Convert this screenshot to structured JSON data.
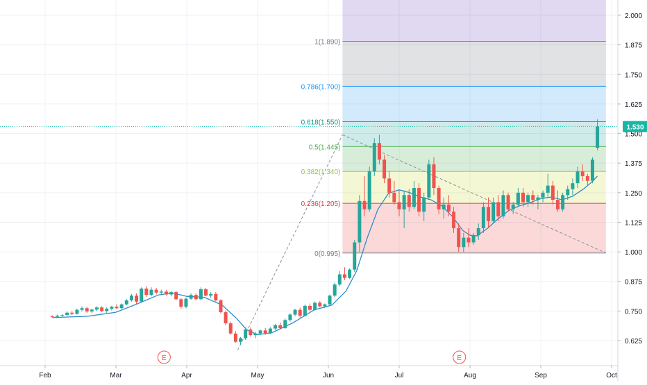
{
  "chart_data": {
    "type": "candlestick",
    "colors": {
      "up": "#26a69a",
      "down": "#ef5350",
      "ma": "#2f8bc9",
      "grid": "#eef0f4",
      "axis_text": "#131722",
      "last_price_badge": "#16b7a4",
      "earnings_marker": "#ef5350"
    },
    "x_axis": {
      "ticks": [
        "Feb",
        "Mar",
        "Apr",
        "May",
        "Jun",
        "Jul",
        "Aug",
        "Sep",
        "Oct"
      ]
    },
    "y_axis": {
      "ylim": [
        0.57,
        2.08
      ],
      "ticks": [
        "2.000",
        "1.875",
        "1.750",
        "1.625",
        "1.500",
        "1.375",
        "1.250",
        "1.125",
        "1.000",
        "0.875",
        "0.750",
        "0.625"
      ],
      "tick_values": [
        2.0,
        1.875,
        1.75,
        1.625,
        1.5,
        1.375,
        1.25,
        1.125,
        1.0,
        0.875,
        0.75,
        0.625
      ],
      "last_price": "1.530",
      "last_price_value": 1.53
    },
    "fibonacci": {
      "start_month": 4.2,
      "end_month": 7.92,
      "levels": [
        {
          "label": "0(0.995)",
          "value": 0.995,
          "color": "#787b86",
          "fill": "rgba(239,83,80,0.22)"
        },
        {
          "label": "0.236(1.205)",
          "value": 1.205,
          "color": "#e53935",
          "fill": "rgba(205,220,57,0.22)"
        },
        {
          "label": "0.382(1.340)",
          "value": 1.34,
          "color": "#8bc34a",
          "fill": "rgba(76,175,80,0.22)"
        },
        {
          "label": "0.5(1.445)",
          "value": 1.445,
          "color": "#4caf50",
          "fill": "rgba(38,166,154,0.22)"
        },
        {
          "label": "0.618(1.550)",
          "value": 1.55,
          "color": "#089981",
          "fill": "rgba(33,150,243,0.20)"
        },
        {
          "label": "0.786(1.700)",
          "value": 1.7,
          "color": "#2196f3",
          "fill": "rgba(120,123,134,0.22)"
        },
        {
          "label": "1(1.890)",
          "value": 1.89,
          "color": "#787b86",
          "fill": "rgba(103,58,183,0.20)"
        }
      ],
      "top_fill_to": 2.08
    },
    "trend_lines": [
      {
        "x1": 2.72,
        "y1": 0.585,
        "x2": 4.2,
        "y2": 1.495
      },
      {
        "x1": 4.2,
        "y1": 1.495,
        "x2": 7.92,
        "y2": 0.995
      }
    ],
    "earnings_markers": [
      {
        "label": "E",
        "month": 1.68
      },
      {
        "label": "E",
        "month": 5.85
      }
    ],
    "candles": [
      [
        0.1,
        0.728,
        0.732,
        0.722,
        0.725
      ],
      [
        0.17,
        0.725,
        0.735,
        0.72,
        0.73
      ],
      [
        0.24,
        0.73,
        0.738,
        0.725,
        0.733
      ],
      [
        0.31,
        0.733,
        0.748,
        0.728,
        0.743
      ],
      [
        0.38,
        0.743,
        0.75,
        0.733,
        0.738
      ],
      [
        0.45,
        0.738,
        0.76,
        0.735,
        0.755
      ],
      [
        0.52,
        0.755,
        0.77,
        0.748,
        0.762
      ],
      [
        0.59,
        0.762,
        0.768,
        0.742,
        0.748
      ],
      [
        0.66,
        0.748,
        0.76,
        0.74,
        0.756
      ],
      [
        0.73,
        0.756,
        0.77,
        0.75,
        0.765
      ],
      [
        0.8,
        0.765,
        0.77,
        0.745,
        0.75
      ],
      [
        0.87,
        0.75,
        0.765,
        0.742,
        0.76
      ],
      [
        0.94,
        0.76,
        0.772,
        0.752,
        0.768
      ],
      [
        1.01,
        0.768,
        0.778,
        0.758,
        0.762
      ],
      [
        1.08,
        0.762,
        0.782,
        0.76,
        0.778
      ],
      [
        1.15,
        0.778,
        0.8,
        0.775,
        0.795
      ],
      [
        1.22,
        0.795,
        0.822,
        0.79,
        0.815
      ],
      [
        1.29,
        0.815,
        0.825,
        0.78,
        0.79
      ],
      [
        1.36,
        0.79,
        0.85,
        0.785,
        0.845
      ],
      [
        1.43,
        0.845,
        0.855,
        0.81,
        0.818
      ],
      [
        1.5,
        0.818,
        0.85,
        0.812,
        0.84
      ],
      [
        1.57,
        0.84,
        0.848,
        0.82,
        0.828
      ],
      [
        1.64,
        0.828,
        0.84,
        0.818,
        0.832
      ],
      [
        1.71,
        0.832,
        0.84,
        0.815,
        0.82
      ],
      [
        1.78,
        0.82,
        0.835,
        0.812,
        0.83
      ],
      [
        1.85,
        0.83,
        0.835,
        0.795,
        0.8
      ],
      [
        1.92,
        0.8,
        0.805,
        0.76,
        0.768
      ],
      [
        1.99,
        0.768,
        0.808,
        0.762,
        0.802
      ],
      [
        2.06,
        0.802,
        0.825,
        0.798,
        0.818
      ],
      [
        2.13,
        0.818,
        0.825,
        0.795,
        0.8
      ],
      [
        2.2,
        0.8,
        0.85,
        0.795,
        0.842
      ],
      [
        2.27,
        0.842,
        0.848,
        0.812,
        0.815
      ],
      [
        2.34,
        0.815,
        0.83,
        0.805,
        0.822
      ],
      [
        2.41,
        0.822,
        0.83,
        0.79,
        0.795
      ],
      [
        2.48,
        0.795,
        0.8,
        0.74,
        0.745
      ],
      [
        2.55,
        0.745,
        0.752,
        0.69,
        0.698
      ],
      [
        2.62,
        0.698,
        0.705,
        0.65,
        0.655
      ],
      [
        2.69,
        0.655,
        0.665,
        0.615,
        0.62
      ],
      [
        2.76,
        0.62,
        0.64,
        0.608,
        0.635
      ],
      [
        2.83,
        0.635,
        0.68,
        0.628,
        0.672
      ],
      [
        2.9,
        0.672,
        0.68,
        0.642,
        0.648
      ],
      [
        2.97,
        0.648,
        0.662,
        0.635,
        0.655
      ],
      [
        3.04,
        0.655,
        0.672,
        0.648,
        0.668
      ],
      [
        3.11,
        0.668,
        0.678,
        0.65,
        0.656
      ],
      [
        3.18,
        0.656,
        0.682,
        0.652,
        0.676
      ],
      [
        3.25,
        0.676,
        0.695,
        0.67,
        0.69
      ],
      [
        3.32,
        0.69,
        0.702,
        0.672,
        0.678
      ],
      [
        3.39,
        0.678,
        0.718,
        0.675,
        0.712
      ],
      [
        3.46,
        0.712,
        0.74,
        0.705,
        0.735
      ],
      [
        3.53,
        0.735,
        0.76,
        0.728,
        0.755
      ],
      [
        3.6,
        0.755,
        0.765,
        0.722,
        0.73
      ],
      [
        3.67,
        0.73,
        0.778,
        0.726,
        0.772
      ],
      [
        3.74,
        0.772,
        0.782,
        0.748,
        0.755
      ],
      [
        3.81,
        0.755,
        0.79,
        0.752,
        0.785
      ],
      [
        3.88,
        0.785,
        0.792,
        0.765,
        0.77
      ],
      [
        3.95,
        0.77,
        0.782,
        0.762,
        0.778
      ],
      [
        4.02,
        0.778,
        0.82,
        0.775,
        0.815
      ],
      [
        4.09,
        0.815,
        0.87,
        0.808,
        0.862
      ],
      [
        4.16,
        0.862,
        0.918,
        0.855,
        0.905
      ],
      [
        4.23,
        0.905,
        0.935,
        0.88,
        0.89
      ],
      [
        4.3,
        0.89,
        0.93,
        0.885,
        0.925
      ],
      [
        4.37,
        0.925,
        1.05,
        0.915,
        1.04
      ],
      [
        4.44,
        1.04,
        1.24,
        1.0,
        1.215
      ],
      [
        4.51,
        1.215,
        1.32,
        1.15,
        1.18
      ],
      [
        4.58,
        1.18,
        1.36,
        1.17,
        1.34
      ],
      [
        4.65,
        1.34,
        1.48,
        1.32,
        1.46
      ],
      [
        4.72,
        1.46,
        1.495,
        1.37,
        1.39
      ],
      [
        4.79,
        1.39,
        1.41,
        1.29,
        1.31
      ],
      [
        4.86,
        1.31,
        1.34,
        1.23,
        1.25
      ],
      [
        4.93,
        1.25,
        1.3,
        1.2,
        1.21
      ],
      [
        5.0,
        1.21,
        1.26,
        1.15,
        1.18
      ],
      [
        5.07,
        1.18,
        1.26,
        1.1,
        1.24
      ],
      [
        5.14,
        1.24,
        1.265,
        1.17,
        1.19
      ],
      [
        5.21,
        1.19,
        1.3,
        1.18,
        1.27
      ],
      [
        5.28,
        1.27,
        1.29,
        1.15,
        1.17
      ],
      [
        5.35,
        1.17,
        1.25,
        1.13,
        1.23
      ],
      [
        5.42,
        1.23,
        1.39,
        1.22,
        1.37
      ],
      [
        5.49,
        1.37,
        1.4,
        1.24,
        1.27
      ],
      [
        5.56,
        1.27,
        1.28,
        1.16,
        1.18
      ],
      [
        5.63,
        1.18,
        1.23,
        1.14,
        1.2
      ],
      [
        5.7,
        1.2,
        1.24,
        1.15,
        1.17
      ],
      [
        5.77,
        1.17,
        1.19,
        1.08,
        1.1
      ],
      [
        5.84,
        1.1,
        1.12,
        1.0,
        1.02
      ],
      [
        5.91,
        1.02,
        1.08,
        1.0,
        1.06
      ],
      [
        5.98,
        1.06,
        1.1,
        1.02,
        1.04
      ],
      [
        6.05,
        1.04,
        1.08,
        1.03,
        1.07
      ],
      [
        6.12,
        1.07,
        1.12,
        1.05,
        1.1
      ],
      [
        6.19,
        1.1,
        1.21,
        1.08,
        1.19
      ],
      [
        6.26,
        1.19,
        1.23,
        1.1,
        1.13
      ],
      [
        6.33,
        1.13,
        1.23,
        1.12,
        1.21
      ],
      [
        6.4,
        1.21,
        1.24,
        1.13,
        1.15
      ],
      [
        6.47,
        1.15,
        1.26,
        1.14,
        1.24
      ],
      [
        6.54,
        1.24,
        1.25,
        1.17,
        1.18
      ],
      [
        6.61,
        1.18,
        1.21,
        1.16,
        1.2
      ],
      [
        6.68,
        1.2,
        1.27,
        1.19,
        1.25
      ],
      [
        6.75,
        1.25,
        1.27,
        1.19,
        1.21
      ],
      [
        6.82,
        1.21,
        1.25,
        1.19,
        1.24
      ],
      [
        6.89,
        1.24,
        1.26,
        1.2,
        1.22
      ],
      [
        6.96,
        1.22,
        1.24,
        1.18,
        1.23
      ],
      [
        7.03,
        1.23,
        1.26,
        1.21,
        1.25
      ],
      [
        7.1,
        1.25,
        1.33,
        1.23,
        1.28
      ],
      [
        7.17,
        1.28,
        1.3,
        1.2,
        1.22
      ],
      [
        7.24,
        1.22,
        1.26,
        1.17,
        1.18
      ],
      [
        7.31,
        1.18,
        1.25,
        1.17,
        1.24
      ],
      [
        7.38,
        1.24,
        1.28,
        1.22,
        1.265
      ],
      [
        7.45,
        1.265,
        1.31,
        1.24,
        1.29
      ],
      [
        7.52,
        1.29,
        1.36,
        1.27,
        1.34
      ],
      [
        7.59,
        1.34,
        1.37,
        1.3,
        1.32
      ],
      [
        7.66,
        1.32,
        1.33,
        1.28,
        1.3
      ],
      [
        7.73,
        1.3,
        1.4,
        1.29,
        1.39
      ],
      [
        7.8,
        1.44,
        1.56,
        1.43,
        1.53
      ]
    ],
    "moving_average": [
      [
        0.1,
        0.722
      ],
      [
        0.6,
        0.728
      ],
      [
        1.0,
        0.745
      ],
      [
        1.3,
        0.78
      ],
      [
        1.6,
        0.818
      ],
      [
        1.8,
        0.826
      ],
      [
        2.0,
        0.812
      ],
      [
        2.25,
        0.808
      ],
      [
        2.5,
        0.775
      ],
      [
        2.7,
        0.72
      ],
      [
        2.85,
        0.67
      ],
      [
        3.0,
        0.65
      ],
      [
        3.2,
        0.658
      ],
      [
        3.5,
        0.7
      ],
      [
        3.8,
        0.755
      ],
      [
        4.05,
        0.775
      ],
      [
        4.25,
        0.835
      ],
      [
        4.4,
        0.92
      ],
      [
        4.55,
        1.06
      ],
      [
        4.7,
        1.18
      ],
      [
        4.85,
        1.248
      ],
      [
        5.0,
        1.262
      ],
      [
        5.15,
        1.25
      ],
      [
        5.3,
        1.232
      ],
      [
        5.45,
        1.22
      ],
      [
        5.6,
        1.195
      ],
      [
        5.75,
        1.15
      ],
      [
        5.9,
        1.09
      ],
      [
        6.0,
        1.07
      ],
      [
        6.1,
        1.068
      ],
      [
        6.25,
        1.1
      ],
      [
        6.4,
        1.14
      ],
      [
        6.55,
        1.175
      ],
      [
        6.7,
        1.195
      ],
      [
        6.85,
        1.208
      ],
      [
        7.0,
        1.225
      ],
      [
        7.15,
        1.232
      ],
      [
        7.3,
        1.22
      ],
      [
        7.45,
        1.235
      ],
      [
        7.6,
        1.265
      ],
      [
        7.72,
        1.295
      ],
      [
        7.8,
        1.32
      ]
    ]
  }
}
